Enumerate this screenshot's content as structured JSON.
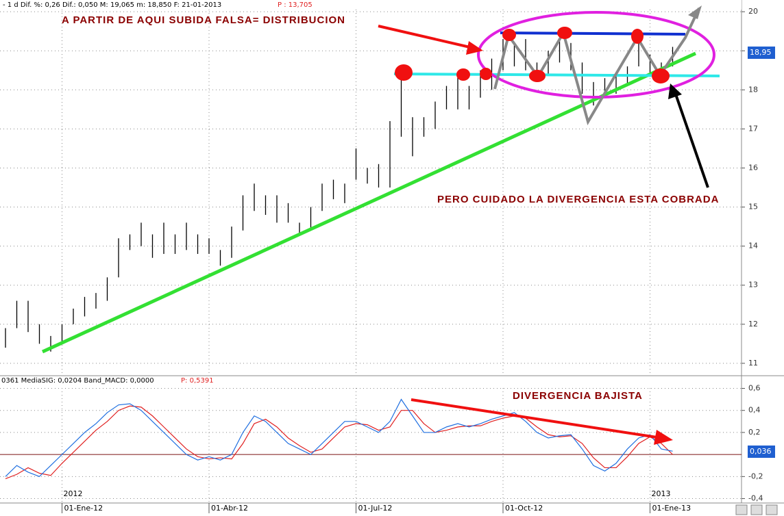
{
  "chart_data": [
    {
      "type": "ohlc",
      "header": "-    1 d Dif. %: 0,26 Dif.: 0,050 M: 19,065 m: 18,850 F: 21-01-2013",
      "header_extra": "P : 13,705",
      "annotations": [
        "A PARTIR DE AQUI SUBIDA FALSA= DISTRIBUCION",
        "PERO CUIDADO LA DIVERGENCIA ESTA COBRADA"
      ],
      "last_value_label": "18,95",
      "color": "#000000",
      "categories": [
        null,
        null,
        null,
        null,
        null,
        "01-Ene-12",
        null,
        null,
        null,
        null,
        null,
        null,
        null,
        null,
        null,
        null,
        null,
        null,
        "01-Abr-12",
        null,
        null,
        null,
        null,
        null,
        null,
        null,
        null,
        null,
        null,
        null,
        null,
        "01-Jul-12",
        null,
        null,
        null,
        null,
        null,
        null,
        null,
        null,
        null,
        null,
        null,
        null,
        "01-Oct-12",
        null,
        null,
        null,
        null,
        null,
        null,
        null,
        null,
        null,
        null,
        null,
        null,
        "01-Ene-13",
        null,
        null
      ],
      "high": [
        11.9,
        12.6,
        12.6,
        12.0,
        11.7,
        12.0,
        12.4,
        12.7,
        12.8,
        13.2,
        14.2,
        14.3,
        14.6,
        14.3,
        14.6,
        14.3,
        14.6,
        14.3,
        14.2,
        13.9,
        14.5,
        15.3,
        15.6,
        15.3,
        15.3,
        15.1,
        14.6,
        15.0,
        15.6,
        15.7,
        15.6,
        16.5,
        16.0,
        16.1,
        17.2,
        18.3,
        17.3,
        17.3,
        17.7,
        18.1,
        18.4,
        18.1,
        18.5,
        18.8,
        19.3,
        19.2,
        19.3,
        18.7,
        19.0,
        19.3,
        19.2,
        18.7,
        18.2,
        18.3,
        18.4,
        18.6,
        19.3,
        18.9,
        18.7,
        19.1
      ],
      "low": [
        11.4,
        11.9,
        11.8,
        11.5,
        11.3,
        11.5,
        12.0,
        12.2,
        12.4,
        12.6,
        13.2,
        13.9,
        14.0,
        13.7,
        13.8,
        13.8,
        13.9,
        13.8,
        13.8,
        13.5,
        13.7,
        14.4,
        14.9,
        14.8,
        14.6,
        14.6,
        14.3,
        14.4,
        14.9,
        15.2,
        15.1,
        15.7,
        15.6,
        15.5,
        15.5,
        16.8,
        16.3,
        16.8,
        17.0,
        17.5,
        17.5,
        17.5,
        17.8,
        18.0,
        18.5,
        18.6,
        18.5,
        18.2,
        18.4,
        18.7,
        18.5,
        17.9,
        17.6,
        17.8,
        17.9,
        18.1,
        18.6,
        18.4,
        18.3,
        18.6
      ],
      "ylim": [
        10.7,
        20.3
      ],
      "yticks": [
        11,
        12,
        13,
        14,
        15,
        16,
        17,
        18,
        19,
        20
      ],
      "grid": true
    },
    {
      "type": "line",
      "header": "0361 MediaSIG: 0,0204 Band_MACD: 0,0000",
      "header_extra": "P: 0,5391",
      "annotations": [
        "DIVERGENCIA BAJISTA"
      ],
      "year_labels": [
        "2012",
        "2013"
      ],
      "last_value_label": "0,036",
      "series": [
        {
          "color": "#1f6fe0",
          "values": [
            -0.2,
            -0.1,
            -0.16,
            -0.2,
            -0.1,
            0.0,
            0.1,
            0.2,
            0.28,
            0.38,
            0.45,
            0.46,
            0.4,
            0.3,
            0.2,
            0.1,
            0.0,
            -0.05,
            -0.02,
            -0.05,
            0.0,
            0.2,
            0.35,
            0.3,
            0.2,
            0.1,
            0.05,
            0.0,
            0.1,
            0.2,
            0.3,
            0.3,
            0.25,
            0.2,
            0.3,
            0.5,
            0.35,
            0.2,
            0.2,
            0.25,
            0.28,
            0.25,
            0.28,
            0.32,
            0.35,
            0.38,
            0.3,
            0.2,
            0.15,
            0.17,
            0.18,
            0.05,
            -0.1,
            -0.15,
            -0.08,
            0.05,
            0.15,
            0.18,
            0.05,
            0.03
          ]
        },
        {
          "color": "#e02020",
          "values": [
            -0.22,
            -0.18,
            -0.12,
            -0.17,
            -0.19,
            -0.08,
            0.02,
            0.12,
            0.22,
            0.3,
            0.4,
            0.44,
            0.43,
            0.35,
            0.25,
            0.15,
            0.05,
            -0.02,
            -0.04,
            -0.03,
            -0.04,
            0.1,
            0.28,
            0.32,
            0.25,
            0.15,
            0.08,
            0.02,
            0.05,
            0.15,
            0.25,
            0.28,
            0.27,
            0.22,
            0.25,
            0.4,
            0.4,
            0.28,
            0.2,
            0.22,
            0.25,
            0.26,
            0.26,
            0.3,
            0.33,
            0.35,
            0.33,
            0.25,
            0.18,
            0.16,
            0.17,
            0.1,
            -0.03,
            -0.12,
            -0.12,
            -0.02,
            0.1,
            0.16,
            0.1,
            0.0
          ]
        }
      ],
      "ylim": [
        -0.44,
        0.69
      ],
      "yticks": [
        {
          "value": 0.6,
          "label": "0,6"
        },
        {
          "value": 0.4,
          "label": "0,4"
        },
        {
          "value": 0.2,
          "label": "0,2"
        },
        {
          "value": -0.2,
          "label": "-0,2"
        },
        {
          "value": -0.4,
          "label": "-0,4"
        }
      ],
      "grid": true
    }
  ]
}
